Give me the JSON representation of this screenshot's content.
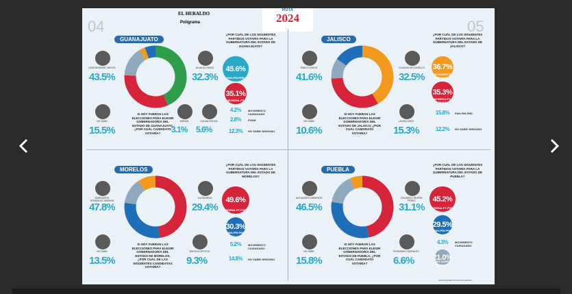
{
  "header": {
    "brand": "EL HERALDO",
    "sub": "Poligrama",
    "ruta": "RUTA",
    "year": "2024",
    "page_left": "04",
    "page_right": "05",
    "footer": "LEVANTAMIENTO DE POLIGRAMA"
  },
  "panels": [
    {
      "region": "GUANAJUATO",
      "question": "SI HOY FUERAN LAS ELECCIONES PARA ELEGIR GOBERNADOR/A DEL ESTADO DE GUANAJUATO, ¿POR CUÁL CANDIDATO VOTARÍA?",
      "party_question": "¿POR CUÁL DE LOS SIGUIENTES PARTIDOS VOTARÍA PARA LA GUBERNATURA DEL ESTADO DE GUANAJUATO?",
      "candidates": [
        {
          "name": "LIBIA DENNISE GARCÍA",
          "value": 43.5,
          "label": "43.5%",
          "color": "#2e9e4a"
        },
        {
          "name": "ALMA ALCARAZ",
          "value": 32.3,
          "label": "32.3%",
          "color": "#d6243a"
        },
        {
          "name": "NO SABE",
          "value": 15.5,
          "label": "15.5%",
          "color": "#8fa9bd"
        },
        {
          "name": "MIRIAM",
          "value": 3.1,
          "label": "3.1%",
          "color": "#f39a1e"
        },
        {
          "name": "YULMA ROCHA",
          "value": 5.6,
          "label": "5.6%",
          "color": "#1e6fb8"
        }
      ],
      "parties": [
        {
          "name": "PAN-PRI-PRD",
          "value": 45.6,
          "label": "45.6%",
          "color": "#2aa8c8"
        },
        {
          "name": "MORENA-PT",
          "value": 35.1,
          "label": "35.1%",
          "color": "#d6243a"
        },
        {
          "name": "MOVIMIENTO CIUDADANO",
          "value": 4.2,
          "label": "4.2%",
          "color": "#f39a1e"
        },
        {
          "name": "PVEM",
          "value": 2.8,
          "label": "2.8%",
          "color": "#2e9e4a"
        },
        {
          "name": "NO SABE/ NINGUNO",
          "value": 12.3,
          "label": "12.3%",
          "color": "#8fa9bd"
        }
      ]
    },
    {
      "region": "JALISCO",
      "question": "SI HOY FUERAN LAS ELECCIONES PARA ELEGIR GOBERNADOR/A DEL ESTADO DE JALISCO, ¿POR CUÁL CANDIDATO VOTARÍA?",
      "party_question": "¿POR CUÁL DE LOS SIGUIENTES PARTIDOS VOTARÍA PARA LA GUBERNATURA DEL ESTADO DE JALISCO?",
      "candidates": [
        {
          "name": "PABLO LEMUS",
          "value": 41.6,
          "label": "41.6%",
          "color": "#f39a1e"
        },
        {
          "name": "CLAUDIA DELGADILLO",
          "value": 32.5,
          "label": "32.5%",
          "color": "#d6243a"
        },
        {
          "name": "NO SABE",
          "value": 10.6,
          "label": "10.6%",
          "color": "#8fa9bd"
        },
        {
          "name": "LAURA HARO",
          "value": 15.3,
          "label": "15.3%",
          "color": "#1e6fb8"
        }
      ],
      "parties": [
        {
          "name": "MOVIMIENTO CIUDADANO",
          "value": 36.7,
          "label": "36.7%",
          "color": "#f39a1e"
        },
        {
          "name": "MORENA-PT-PVEM",
          "value": 35.3,
          "label": "35.3%",
          "color": "#d6243a"
        },
        {
          "name": "PAN-PRI-PRD",
          "value": 15.8,
          "label": "15.8%",
          "color": "#1e6fb8"
        },
        {
          "name": "NO SABE/ NINGUNO",
          "value": 12.2,
          "label": "12.2%",
          "color": "#8fa9bd"
        }
      ]
    },
    {
      "region": "MORELOS",
      "question": "SI HOY FUERAN LAS ELECCIONES PARA ELEGIR GOBERNADOR/A DEL ESTADO DE MORELOS, ¿POR CUÁL DE LAS SIGUIENTES CANDIDATAS VOTARÍA?",
      "party_question": "¿POR CUÁL DE LOS SIGUIENTES PARTIDOS VOTARÍA PARA LA GUBERNATURA DEL ESTADO DE MORELOS?",
      "candidates": [
        {
          "name": "MARGARITA GONZÁLEZ SARAVIA",
          "value": 47.8,
          "label": "47.8%",
          "color": "#d6243a"
        },
        {
          "name": "LUCÍA MEZA",
          "value": 29.4,
          "label": "29.4%",
          "color": "#1e6fb8"
        },
        {
          "name": "NO SABE",
          "value": 13.5,
          "label": "13.5%",
          "color": "#8fa9bd"
        },
        {
          "name": "JESSICA ORTEGA",
          "value": 9.3,
          "label": "9.3%",
          "color": "#f39a1e"
        }
      ],
      "parties": [
        {
          "name": "MORENA-PT-PVEM",
          "value": 49.6,
          "label": "49.6%",
          "color": "#d6243a"
        },
        {
          "name": "PAN-PRI-PRD",
          "value": 30.3,
          "label": "30.3%",
          "color": "#1e6fb8"
        },
        {
          "name": "MOVIMIENTO CIUDADANO",
          "value": 5.2,
          "label": "5.2%",
          "color": "#f39a1e"
        },
        {
          "name": "NO SABE/ NINGUNO",
          "value": 14.8,
          "label": "14.8%",
          "color": "#8fa9bd"
        }
      ]
    },
    {
      "region": "PUEBLA",
      "question": "SI HOY FUERAN LAS ELECCIONES PARA ELEGIR GOBERNADOR/A DEL ESTADO DE PUEBLA, ¿POR CUÁL CANDIDATO VOTARÍA?",
      "party_question": "¿POR CUÁL DE LOS SIGUIENTES PARTIDOS VOTARÍA PARA LA GUBERNATURA DEL ESTADO DE PUEBLA?",
      "candidates": [
        {
          "name": "ALEJANDRO ARMENTA",
          "value": 46.5,
          "label": "46.5%",
          "color": "#d6243a"
        },
        {
          "name": "EDUARDO RIVERA PÉREZ",
          "value": 31.1,
          "label": "31.1%",
          "color": "#1e6fb8"
        },
        {
          "name": "NO SABE",
          "value": 15.8,
          "label": "15.8%",
          "color": "#8fa9bd"
        },
        {
          "name": "FERNANDO MORALES",
          "value": 6.6,
          "label": "6.6%",
          "color": "#f39a1e"
        }
      ],
      "parties": [
        {
          "name": "MORENA-PT-PVEM",
          "value": 45.2,
          "label": "45.2%",
          "color": "#d6243a"
        },
        {
          "name": "PAN-PRI-PRD",
          "value": 29.5,
          "label": "29.5%",
          "color": "#1e6fb8"
        },
        {
          "name": "MOVIMIENTO CIUDADANO",
          "value": 4.3,
          "label": "4.3%",
          "color": "#f39a1e"
        },
        {
          "name": "NO SABE/ NINGUNO",
          "value": 21.0,
          "label": "21.0%",
          "color": "#8fa9bd"
        }
      ]
    }
  ]
}
